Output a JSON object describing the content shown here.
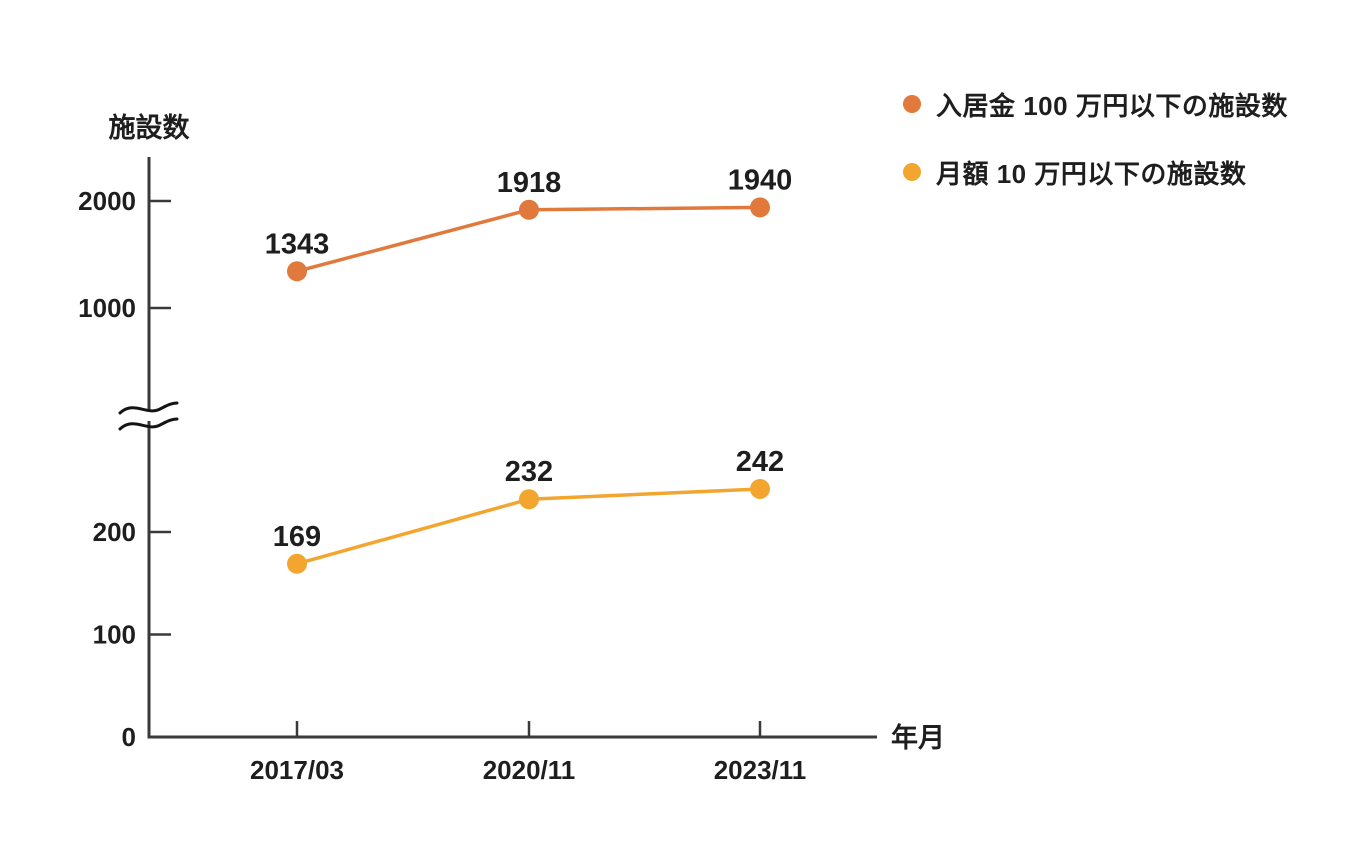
{
  "page": {
    "background_color": "#ffffff",
    "text_color": "#1e1e1e",
    "axis_color": "#3a3a3a"
  },
  "chart_data": {
    "type": "line",
    "title": "",
    "x_categories": [
      "2017/03",
      "2020/11",
      "2023/11"
    ],
    "x_axis_label": "年月",
    "y_axis_label": "施設数",
    "y_ticks_lower": [
      0,
      100,
      200
    ],
    "y_ticks_upper": [
      1000,
      2000
    ],
    "axis_break": true,
    "grid": false,
    "legend_position": "top-right",
    "series": [
      {
        "name": "入居金 100 万円以下の施設数",
        "color": "#e0793b",
        "values": [
          1343,
          1918,
          1940
        ],
        "value_labels": [
          "1343",
          "1918",
          "1940"
        ]
      },
      {
        "name": "月額 10 万円以下の施設数",
        "color": "#f2a62f",
        "values": [
          169,
          232,
          242
        ],
        "value_labels": [
          "169",
          "232",
          "242"
        ]
      }
    ]
  }
}
